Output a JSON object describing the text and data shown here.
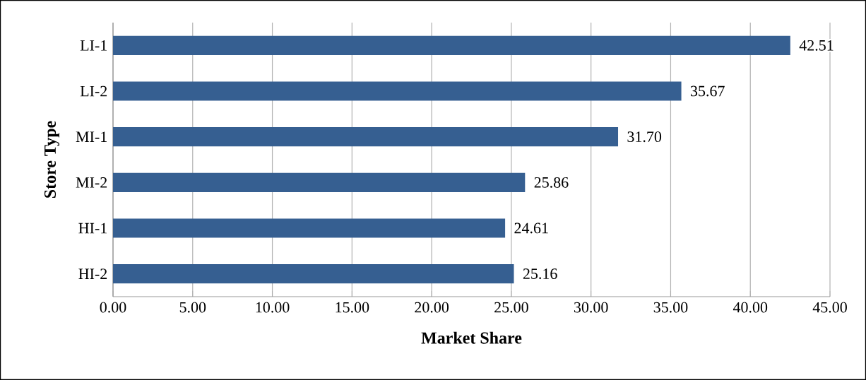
{
  "chart_data": {
    "type": "bar",
    "orientation": "horizontal",
    "xlabel": "Market Share",
    "ylabel": "Store Type",
    "categories": [
      "LI-1",
      "LI-2",
      "MI-1",
      "MI-2",
      "HI-1",
      "HI-2"
    ],
    "values": [
      42.51,
      35.67,
      31.7,
      25.86,
      24.61,
      25.16
    ],
    "value_labels": [
      "42.51",
      "35.67",
      "31.70",
      "25.86",
      "24.61",
      "25.16"
    ],
    "color": "#365f91",
    "xlim": [
      0,
      45
    ],
    "xticks": [
      {
        "value": 0,
        "label": "0.00"
      },
      {
        "value": 5,
        "label": "5.00"
      },
      {
        "value": 10,
        "label": "10.00"
      },
      {
        "value": 15,
        "label": "15.00"
      },
      {
        "value": 20,
        "label": "20.00"
      },
      {
        "value": 25,
        "label": "25.00"
      },
      {
        "value": 30,
        "label": "30.00"
      },
      {
        "value": 35,
        "label": "35.00"
      },
      {
        "value": 40,
        "label": "40.00"
      },
      {
        "value": 45,
        "label": "45.00"
      }
    ],
    "grid": "x"
  }
}
